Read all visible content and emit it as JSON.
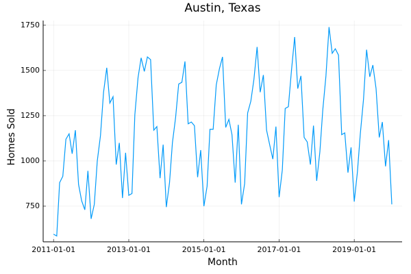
{
  "chart_data": {
    "type": "line",
    "title": "Austin, Texas",
    "x_label": "Month",
    "y_label": "Homes Sold",
    "x": [
      "2011-01-01",
      "2011-02-01",
      "2011-03-01",
      "2011-04-01",
      "2011-05-01",
      "2011-06-01",
      "2011-07-01",
      "2011-08-01",
      "2011-09-01",
      "2011-10-01",
      "2011-11-01",
      "2011-12-01",
      "2012-01-01",
      "2012-02-01",
      "2012-03-01",
      "2012-04-01",
      "2012-05-01",
      "2012-06-01",
      "2012-07-01",
      "2012-08-01",
      "2012-09-01",
      "2012-10-01",
      "2012-11-01",
      "2012-12-01",
      "2013-01-01",
      "2013-02-01",
      "2013-03-01",
      "2013-04-01",
      "2013-05-01",
      "2013-06-01",
      "2013-07-01",
      "2013-08-01",
      "2013-09-01",
      "2013-10-01",
      "2013-11-01",
      "2013-12-01",
      "2014-01-01",
      "2014-02-01",
      "2014-03-01",
      "2014-04-01",
      "2014-05-01",
      "2014-06-01",
      "2014-07-01",
      "2014-08-01",
      "2014-09-01",
      "2014-10-01",
      "2014-11-01",
      "2014-12-01",
      "2015-01-01",
      "2015-02-01",
      "2015-03-01",
      "2015-04-01",
      "2015-05-01",
      "2015-06-01",
      "2015-07-01",
      "2015-08-01",
      "2015-09-01",
      "2015-10-01",
      "2015-11-01",
      "2015-12-01",
      "2016-01-01",
      "2016-02-01",
      "2016-03-01",
      "2016-04-01",
      "2016-05-01",
      "2016-06-01",
      "2016-07-01",
      "2016-08-01",
      "2016-09-01",
      "2016-10-01",
      "2016-11-01",
      "2016-12-01",
      "2017-01-01",
      "2017-02-01",
      "2017-03-01",
      "2017-04-01",
      "2017-05-01",
      "2017-06-01",
      "2017-07-01",
      "2017-08-01",
      "2017-09-01",
      "2017-10-01",
      "2017-11-01",
      "2017-12-01",
      "2018-01-01",
      "2018-02-01",
      "2018-03-01",
      "2018-04-01",
      "2018-05-01",
      "2018-06-01",
      "2018-07-01",
      "2018-08-01",
      "2018-09-01",
      "2018-10-01",
      "2018-11-01",
      "2018-12-01",
      "2019-01-01",
      "2019-02-01",
      "2019-03-01",
      "2019-04-01",
      "2019-05-01",
      "2019-06-01",
      "2019-07-01",
      "2019-08-01",
      "2019-09-01",
      "2019-10-01",
      "2019-11-01",
      "2019-12-01",
      "2020-01-01"
    ],
    "series": [
      {
        "color": "#009af9",
        "values": [
          595,
          585,
          880,
          915,
          1120,
          1150,
          1040,
          1170,
          870,
          780,
          730,
          945,
          680,
          760,
          1000,
          1140,
          1380,
          1515,
          1320,
          1355,
          980,
          1100,
          795,
          1045,
          810,
          820,
          1255,
          1460,
          1570,
          1495,
          1575,
          1560,
          1170,
          1190,
          905,
          1090,
          745,
          880,
          1100,
          1240,
          1425,
          1435,
          1550,
          1205,
          1215,
          1195,
          910,
          1060,
          750,
          860,
          1175,
          1175,
          1420,
          1510,
          1575,
          1185,
          1230,
          1145,
          880,
          1200,
          760,
          875,
          1265,
          1330,
          1450,
          1630,
          1380,
          1475,
          1170,
          1090,
          1010,
          1190,
          800,
          950,
          1290,
          1300,
          1500,
          1685,
          1400,
          1470,
          1130,
          1105,
          980,
          1195,
          890,
          1050,
          1280,
          1470,
          1740,
          1595,
          1620,
          1585,
          1145,
          1155,
          935,
          1075,
          775,
          940,
          1150,
          1340,
          1615,
          1465,
          1530,
          1400,
          1130,
          1215,
          970,
          1115,
          760
        ]
      }
    ],
    "xlim": [
      "2010-09-22",
      "2020-04-10"
    ],
    "xticks": [
      "2011-01-01",
      "2013-01-01",
      "2015-01-01",
      "2017-01-01",
      "2019-01-01"
    ],
    "ylim": [
      553,
      1776
    ],
    "yticks": [
      750,
      1000,
      1250,
      1500,
      1750
    ],
    "grid": true
  }
}
